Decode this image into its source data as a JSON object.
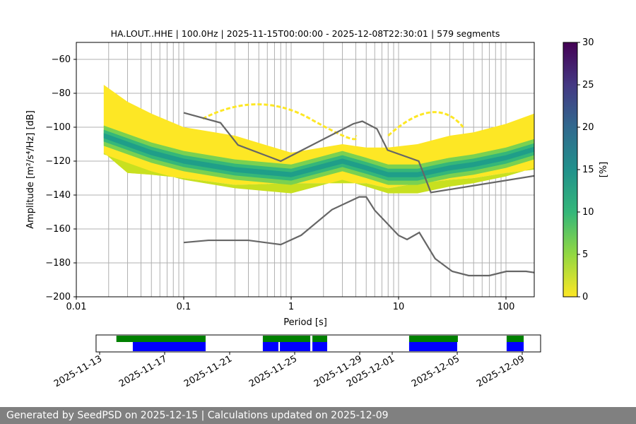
{
  "chart_data": {
    "type": "heatmap",
    "title": "HA.LOUT..HHE | 100.0Hz | 2025-11-15T00:00:00 - 2025-12-08T22:30:01 | 579 segments",
    "xlabel": "Period [s]",
    "ylabel": "Amplitude [m²/s⁴/Hz] [dB]",
    "xscale": "log",
    "xlim": [
      0.01,
      183
    ],
    "ylim": [
      -200,
      -50
    ],
    "xticks": [
      {
        "v": 0.01,
        "l": "0.01"
      },
      {
        "v": 0.1,
        "l": "0.1"
      },
      {
        "v": 1,
        "l": "1"
      },
      {
        "v": 10,
        "l": "10"
      },
      {
        "v": 100,
        "l": "100"
      }
    ],
    "yticks": [
      -60,
      -80,
      -100,
      -120,
      -140,
      -160,
      -180,
      -200
    ],
    "grid": true,
    "colorbar": {
      "label": "[%]",
      "range": [
        0,
        30
      ],
      "ticks": [
        0,
        5,
        10,
        15,
        20,
        25,
        30
      ],
      "colormap": "viridis_r"
    },
    "psd_envelope": {
      "periods": [
        0.018,
        0.03,
        0.05,
        0.1,
        0.3,
        1,
        3,
        5,
        8,
        15,
        30,
        50,
        100,
        183
      ],
      "upper": [
        -75,
        -85,
        -92,
        -100,
        -105,
        -115,
        -110,
        -112,
        -112,
        -110,
        -105,
        -103,
        -98,
        -92
      ],
      "lower": [
        -115,
        -127,
        -128,
        -130,
        -134,
        -133,
        -133,
        -133,
        -136,
        -133,
        -131,
        -130,
        -127,
        -125
      ],
      "mode": [
        -105,
        -110,
        -115,
        -120,
        -125,
        -128,
        -120,
        -124,
        -128,
        -128,
        -124,
        -122,
        -118,
        -113
      ]
    },
    "nhnm": {
      "periods": [
        0.1,
        0.22,
        0.32,
        0.8,
        3.8,
        4.6,
        6.3,
        7.9,
        15.4,
        20,
        183
      ],
      "db": [
        -91.5,
        -97.4,
        -110.5,
        -120,
        -98,
        -96.5,
        -101,
        -113.5,
        -120,
        -138.5,
        -128.7
      ]
    },
    "nlnm": {
      "periods": [
        0.1,
        0.17,
        0.4,
        0.8,
        1.24,
        2.4,
        4.3,
        5,
        6,
        10,
        12,
        15.6,
        21.9,
        31.6,
        45,
        70,
        101,
        154,
        183
      ],
      "db": [
        -168,
        -166.7,
        -166.7,
        -169.2,
        -163.7,
        -148.6,
        -141.1,
        -141.1,
        -149,
        -163.8,
        -166.2,
        -162.1,
        -177.5,
        -185,
        -187.5,
        -187.5,
        -185,
        -185,
        -185.7
      ]
    },
    "timeline": {
      "unit": "days since 2025-11-13",
      "xlim": [
        -0.22,
        27.13
      ],
      "ticks": [
        {
          "v": 0,
          "l": "2025-11-13"
        },
        {
          "v": 4,
          "l": "2025-11-17"
        },
        {
          "v": 8,
          "l": "2025-11-21"
        },
        {
          "v": 12,
          "l": "2025-11-25"
        },
        {
          "v": 16,
          "l": "2025-11-29"
        },
        {
          "v": 18,
          "l": "2025-12-01"
        },
        {
          "v": 22,
          "l": "2025-12-05"
        },
        {
          "v": 26,
          "l": "2025-12-09"
        }
      ],
      "data_available": [
        [
          1.03,
          6.52
        ],
        [
          10.04,
          12.96
        ],
        [
          13.09,
          14.0
        ],
        [
          19.04,
          22.04
        ],
        [
          25.04,
          26.09
        ]
      ],
      "processed": [
        [
          2.04,
          6.52
        ],
        [
          10.04,
          11.0
        ],
        [
          11.09,
          12.96
        ],
        [
          13.09,
          14.0
        ],
        [
          19.04,
          22.0
        ],
        [
          25.04,
          26.09
        ]
      ],
      "colors": {
        "data_available": "#008000",
        "processed": "#0000ff"
      }
    }
  },
  "footer": "Generated by SeedPSD on 2025-12-15 | Calculations updated on 2025-12-09"
}
